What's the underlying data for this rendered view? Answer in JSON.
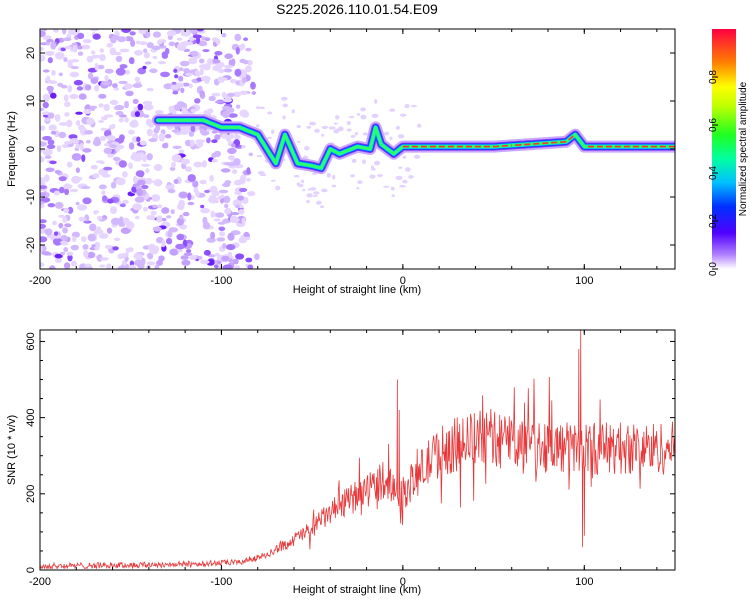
{
  "title": "S225.2026.110.01.54.E09",
  "chart_data": [
    {
      "type": "heatmap",
      "name": "spectrogram",
      "xlabel": "Height of straight line (km)",
      "ylabel": "Frequency (Hz)",
      "xlim": [
        -200,
        150
      ],
      "ylim": [
        -25,
        25
      ],
      "xticks": [
        -200,
        -100,
        0,
        100
      ],
      "yticks": [
        -20,
        -10,
        0,
        10,
        20
      ],
      "colorbar": {
        "label": "Normalized spectral amplitude",
        "range": [
          0,
          1
        ],
        "ticks": [
          0.0,
          0.2,
          0.4,
          0.6,
          0.8
        ]
      },
      "ridge": [
        {
          "x": -130,
          "y": 6
        },
        {
          "x": -110,
          "y": 6
        },
        {
          "x": -100,
          "y": 4.5
        },
        {
          "x": -90,
          "y": 4.5
        },
        {
          "x": -80,
          "y": 3
        },
        {
          "x": -75,
          "y": 0
        },
        {
          "x": -70,
          "y": -3
        },
        {
          "x": -65,
          "y": 3
        },
        {
          "x": -58,
          "y": -3
        },
        {
          "x": -50,
          "y": -3.5
        },
        {
          "x": -45,
          "y": -4
        },
        {
          "x": -40,
          "y": 0
        },
        {
          "x": -35,
          "y": -1
        },
        {
          "x": -25,
          "y": 0.5
        },
        {
          "x": -18,
          "y": 0
        },
        {
          "x": -15,
          "y": 4.5
        },
        {
          "x": -12,
          "y": 1
        },
        {
          "x": -5,
          "y": -1
        },
        {
          "x": 0,
          "y": 0.5
        },
        {
          "x": 50,
          "y": 0.5
        },
        {
          "x": 90,
          "y": 1.5
        },
        {
          "x": 95,
          "y": 3
        },
        {
          "x": 100,
          "y": 0.5
        },
        {
          "x": 150,
          "y": 0.5
        }
      ],
      "noise_region_xmax": -80
    },
    {
      "type": "line",
      "name": "snr",
      "xlabel": "Height of straight line (km)",
      "ylabel": "SNR (10 * v/v)",
      "xlim": [
        -200,
        150
      ],
      "ylim": [
        0,
        630
      ],
      "xticks": [
        -200,
        -100,
        0,
        100
      ],
      "yticks": [
        0,
        200,
        400,
        600
      ],
      "color": "#e8383a",
      "trend": [
        {
          "x": -200,
          "y": 10
        },
        {
          "x": -120,
          "y": 15
        },
        {
          "x": -90,
          "y": 20
        },
        {
          "x": -75,
          "y": 40
        },
        {
          "x": -60,
          "y": 80
        },
        {
          "x": -50,
          "y": 110
        },
        {
          "x": -40,
          "y": 150
        },
        {
          "x": -30,
          "y": 180
        },
        {
          "x": -20,
          "y": 210
        },
        {
          "x": -10,
          "y": 240
        },
        {
          "x": 0,
          "y": 200
        },
        {
          "x": 10,
          "y": 260
        },
        {
          "x": 20,
          "y": 310
        },
        {
          "x": 30,
          "y": 330
        },
        {
          "x": 45,
          "y": 350
        },
        {
          "x": 60,
          "y": 340
        },
        {
          "x": 75,
          "y": 330
        },
        {
          "x": 90,
          "y": 320
        },
        {
          "x": 100,
          "y": 320
        },
        {
          "x": 120,
          "y": 320
        },
        {
          "x": 150,
          "y": 320
        }
      ],
      "spikes": [
        {
          "x": -3,
          "y": 500
        },
        {
          "x": -2,
          "y": 420
        },
        {
          "x": 97,
          "y": 580
        },
        {
          "x": 98,
          "y": 630
        },
        {
          "x": 99,
          "y": 60
        },
        {
          "x": 100,
          "y": 90
        }
      ]
    }
  ]
}
